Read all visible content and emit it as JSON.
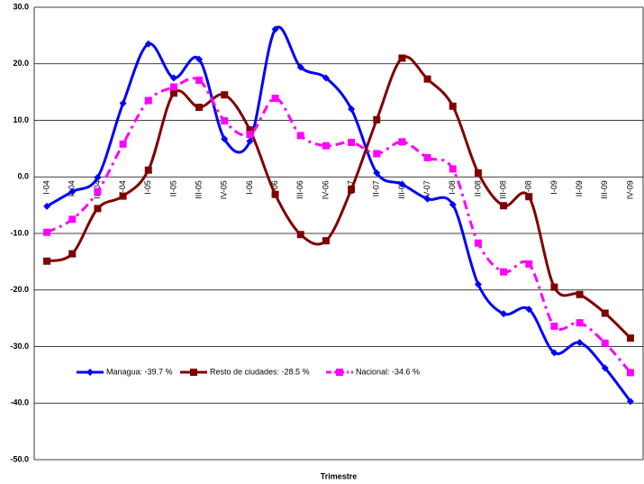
{
  "chart_data": {
    "type": "line",
    "xlabel": "Trimestre",
    "categories": [
      "I-04",
      "II-04",
      "III-04",
      "IV-04",
      "I-05",
      "II-05",
      "III-05",
      "IV-05",
      "I-06",
      "II-06",
      "III-06",
      "IV-06",
      "I-07",
      "II-07",
      "III-07",
      "IV-07",
      "I-08",
      "II-08",
      "III-08",
      "IV-08",
      "I-09",
      "II-09",
      "III-09",
      "IV-09"
    ],
    "series": [
      {
        "name": "Managua: -39.7 %",
        "color": "#0000ff",
        "marker": "diamond",
        "dash": false,
        "values": [
          -5.2,
          -2.6,
          -0.1,
          13.0,
          23.5,
          17.5,
          20.8,
          6.7,
          6.3,
          26.1,
          19.4,
          17.5,
          12.0,
          0.7,
          -1.3,
          -3.9,
          -4.9,
          -19.0,
          -24.2,
          -23.4,
          -31.1,
          -29.3,
          -33.8,
          -39.7
        ]
      },
      {
        "name": "Resto de ciudades: -28.5 %",
        "color": "#800000",
        "marker": "square",
        "dash": false,
        "values": [
          -14.9,
          -13.6,
          -5.6,
          -3.4,
          1.2,
          14.8,
          12.3,
          14.5,
          8.3,
          -3.1,
          -10.2,
          -11.3,
          -2.2,
          10.1,
          21.0,
          17.3,
          12.5,
          0.7,
          -5.1,
          -3.5,
          -19.5,
          -20.8,
          -24.1,
          -28.5
        ]
      },
      {
        "name": "Nacional: -34.6 %",
        "color": "#ff00ff",
        "marker": "square",
        "dash": true,
        "values": [
          -9.8,
          -7.5,
          -2.6,
          5.8,
          13.5,
          15.9,
          17.1,
          9.9,
          7.5,
          13.9,
          7.3,
          5.5,
          6.1,
          4.1,
          6.2,
          3.4,
          1.4,
          -11.7,
          -16.8,
          -15.4,
          -26.4,
          -25.8,
          -29.4,
          -34.6
        ]
      }
    ],
    "ylim": [
      -50,
      30
    ],
    "yticks": [
      {
        "value": -50,
        "label": "-50.0"
      },
      {
        "value": -40,
        "label": "-40.0"
      },
      {
        "value": -30,
        "label": "-30.0"
      },
      {
        "value": -20,
        "label": "-20.0"
      },
      {
        "value": -10,
        "label": "-10.0"
      },
      {
        "value": 0,
        "label": "0.0"
      },
      {
        "value": 10,
        "label": "10.0"
      },
      {
        "value": 20,
        "label": "20.0"
      },
      {
        "value": 30,
        "label": "30.0"
      }
    ],
    "grid": true,
    "legend": "lower-left"
  }
}
